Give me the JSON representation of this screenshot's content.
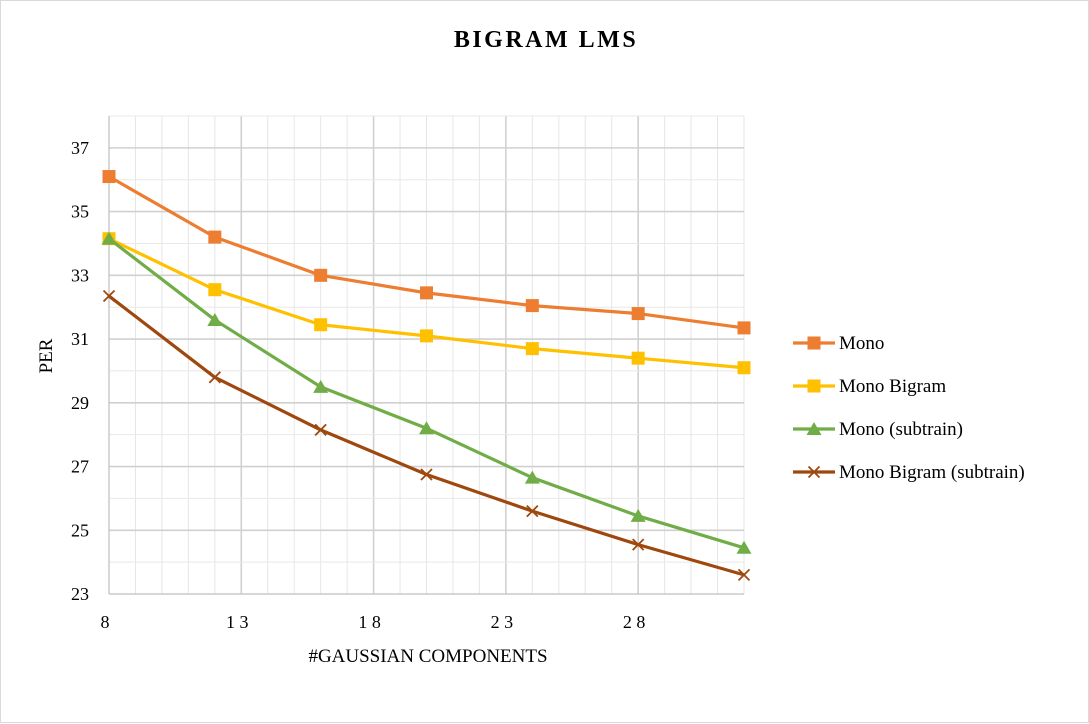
{
  "chart_data": {
    "type": "line",
    "title": "BIGRAM LMS",
    "xlabel": "#GAUSSIAN COMPONENTS",
    "ylabel": "PER",
    "x": [
      8,
      12,
      16,
      20,
      24,
      28,
      32
    ],
    "xlim": [
      8,
      32
    ],
    "ylim": [
      23,
      38
    ],
    "xticks": [
      8,
      13,
      18,
      23,
      28
    ],
    "xtick_labels": [
      "8",
      "1 3",
      "1 8",
      "2 3",
      "2 8"
    ],
    "yticks": [
      23,
      25,
      27,
      29,
      31,
      33,
      35,
      37
    ],
    "grid": true,
    "legend_position": "right",
    "series": [
      {
        "name": "Mono",
        "color": "#ED7D31",
        "marker": "square",
        "values": [
          36.1,
          34.2,
          33.0,
          32.45,
          32.05,
          31.8,
          31.35
        ]
      },
      {
        "name": "Mono Bigram",
        "color": "#FFC000",
        "marker": "square",
        "values": [
          34.15,
          32.55,
          31.45,
          31.1,
          30.7,
          30.4,
          30.1
        ]
      },
      {
        "name": "Mono (subtrain)",
        "color": "#70AD47",
        "marker": "triangle",
        "values": [
          34.15,
          31.6,
          29.5,
          28.2,
          26.65,
          25.45,
          24.45
        ]
      },
      {
        "name": "Mono Bigram (subtrain)",
        "color": "#9E480E",
        "marker": "x",
        "values": [
          32.35,
          29.8,
          28.15,
          26.75,
          25.6,
          24.55,
          23.6
        ]
      }
    ]
  }
}
